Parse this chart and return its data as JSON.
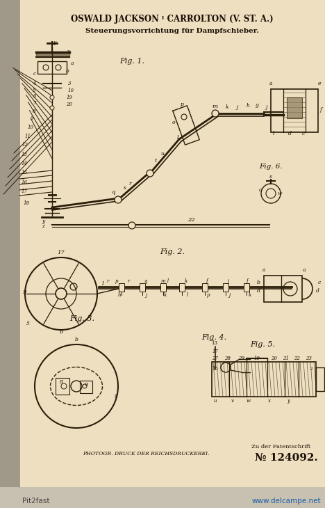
{
  "bg_color": "#c8c0b0",
  "page_bg": "#f0e0c0",
  "inner_bg": "#eedfc0",
  "border_left": "#888070",
  "text_color": "#1a0e04",
  "line_color": "#2a1e0a",
  "title_line1": "OSWALD JACKSON ᵎ CARROLTON (V. ST. A.)",
  "title_line2": "Steuerungsvorrichtung für Dampfschieber.",
  "bottom_left": "PHOTOGR. DRUCK DER REICHSDRUCKEREI.",
  "bottom_right_line1": "Zu der Patentschrift",
  "bottom_right_line2": "№ 124092.",
  "watermark_left": "Pit2fast",
  "watermark_right": "www.delcampe.net"
}
